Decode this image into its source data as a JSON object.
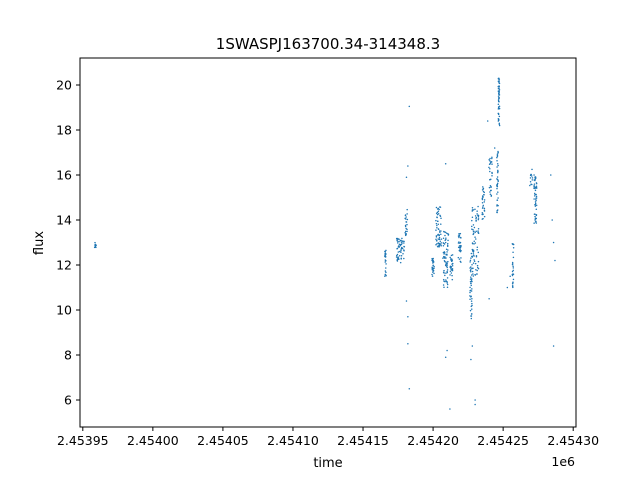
{
  "chart_data": {
    "type": "scatter",
    "title": "1SWASPJ163700.34-314348.3",
    "xlabel": "time",
    "ylabel": "flux",
    "x_offset_label": "1e6",
    "xlim": [
      2453948,
      2454302
    ],
    "ylim": [
      4.8,
      21.2
    ],
    "x_ticks": [
      2453950,
      2454000,
      2454050,
      2454100,
      2454150,
      2454200,
      2454250,
      2454300
    ],
    "x_tick_labels": [
      "2.45395",
      "2.45400",
      "2.45405",
      "2.45410",
      "2.45415",
      "2.45420",
      "2.45425",
      "2.45430"
    ],
    "y_ticks": [
      6,
      8,
      10,
      12,
      14,
      16,
      18,
      20
    ],
    "y_tick_labels": [
      "6",
      "8",
      "10",
      "12",
      "14",
      "16",
      "18",
      "20"
    ],
    "grid": false,
    "legend": "none",
    "marker_color": "#1f77b4",
    "point_clusters": [
      {
        "x": 2453959,
        "x_spread": 0.6,
        "y_min": 12.75,
        "y_max": 13.0,
        "n": 12
      },
      {
        "x": 2454166,
        "x_spread": 0.5,
        "y_min": 11.4,
        "y_max": 12.7,
        "n": 24
      },
      {
        "x": 2454175,
        "x_spread": 1.2,
        "y_min": 12.0,
        "y_max": 13.2,
        "n": 30
      },
      {
        "x": 2454178,
        "x_spread": 1.5,
        "y_min": 12.1,
        "y_max": 13.2,
        "n": 30
      },
      {
        "x": 2454181,
        "x_spread": 1.0,
        "y_min": 13.3,
        "y_max": 14.5,
        "n": 22
      },
      {
        "x": 2454200,
        "x_spread": 0.8,
        "y_min": 11.5,
        "y_max": 12.3,
        "n": 30
      },
      {
        "x": 2454204,
        "x_spread": 2.0,
        "y_min": 12.8,
        "y_max": 14.6,
        "n": 60
      },
      {
        "x": 2454209,
        "x_spread": 2.0,
        "y_min": 11.0,
        "y_max": 13.6,
        "n": 70
      },
      {
        "x": 2454213,
        "x_spread": 1.0,
        "y_min": 11.3,
        "y_max": 12.5,
        "n": 30
      },
      {
        "x": 2454219,
        "x_spread": 1.0,
        "y_min": 12.1,
        "y_max": 13.4,
        "n": 35
      },
      {
        "x": 2454227,
        "x_spread": 0.8,
        "y_min": 9.6,
        "y_max": 12.6,
        "n": 45
      },
      {
        "x": 2454230,
        "x_spread": 2.5,
        "y_min": 11.5,
        "y_max": 14.6,
        "n": 80
      },
      {
        "x": 2454236,
        "x_spread": 1.0,
        "y_min": 14.0,
        "y_max": 15.5,
        "n": 30
      },
      {
        "x": 2454241,
        "x_spread": 1.2,
        "y_min": 15.0,
        "y_max": 16.8,
        "n": 30
      },
      {
        "x": 2454246,
        "x_spread": 0.5,
        "y_min": 14.3,
        "y_max": 17.2,
        "n": 40
      },
      {
        "x": 2454247,
        "x_spread": 0.5,
        "y_min": 18.2,
        "y_max": 20.3,
        "n": 55
      },
      {
        "x": 2454257,
        "x_spread": 0.5,
        "y_min": 11.0,
        "y_max": 13.0,
        "n": 25
      },
      {
        "x": 2454270,
        "x_spread": 1.0,
        "y_min": 15.5,
        "y_max": 16.3,
        "n": 12
      },
      {
        "x": 2454273,
        "x_spread": 1.0,
        "y_min": 13.8,
        "y_max": 16.0,
        "n": 55
      }
    ],
    "outlier_points": [
      {
        "x": 2454183,
        "y": 19.05
      },
      {
        "x": 2454182,
        "y": 16.4
      },
      {
        "x": 2454181,
        "y": 15.9
      },
      {
        "x": 2454182,
        "y": 8.5
      },
      {
        "x": 2454183,
        "y": 6.5
      },
      {
        "x": 2454182,
        "y": 9.7
      },
      {
        "x": 2454181,
        "y": 10.4
      },
      {
        "x": 2454209,
        "y": 16.5
      },
      {
        "x": 2454209,
        "y": 7.9
      },
      {
        "x": 2454210,
        "y": 8.2
      },
      {
        "x": 2454212,
        "y": 5.6
      },
      {
        "x": 2454227,
        "y": 7.8
      },
      {
        "x": 2454228,
        "y": 8.4
      },
      {
        "x": 2454230,
        "y": 5.8
      },
      {
        "x": 2454230,
        "y": 6.0
      },
      {
        "x": 2454239,
        "y": 18.4
      },
      {
        "x": 2454240,
        "y": 10.5
      },
      {
        "x": 2454244,
        "y": 17.2
      },
      {
        "x": 2454253,
        "y": 11.0
      },
      {
        "x": 2454255,
        "y": 11.5
      },
      {
        "x": 2454284,
        "y": 16.0
      },
      {
        "x": 2454285,
        "y": 14.0
      },
      {
        "x": 2454286,
        "y": 13.0
      },
      {
        "x": 2454287,
        "y": 12.2
      },
      {
        "x": 2454286,
        "y": 8.4
      }
    ]
  }
}
